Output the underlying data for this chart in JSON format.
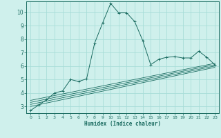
{
  "xlabel": "Humidex (Indice chaleur)",
  "bg_color": "#cff0ec",
  "line_color": "#1a6b60",
  "grid_color": "#a8ddd8",
  "xlim": [
    -0.5,
    23.5
  ],
  "ylim": [
    2.5,
    10.8
  ],
  "xticks": [
    0,
    1,
    2,
    3,
    4,
    5,
    6,
    7,
    8,
    9,
    10,
    11,
    12,
    13,
    14,
    15,
    16,
    17,
    18,
    19,
    20,
    21,
    22,
    23
  ],
  "yticks": [
    3,
    4,
    5,
    6,
    7,
    8,
    9,
    10
  ],
  "main_x": [
    0,
    1,
    2,
    3,
    4,
    5,
    6,
    7,
    8,
    9,
    10,
    11,
    12,
    13,
    14,
    15,
    16,
    17,
    18,
    19,
    20,
    21,
    22,
    23
  ],
  "main_y": [
    2.7,
    3.1,
    3.5,
    4.0,
    4.15,
    5.0,
    4.85,
    5.05,
    7.7,
    9.2,
    10.65,
    9.95,
    9.95,
    9.3,
    7.9,
    6.1,
    6.5,
    6.65,
    6.7,
    6.6,
    6.6,
    7.1,
    6.65,
    6.1
  ],
  "ref_lines": [
    [
      [
        0,
        23
      ],
      [
        3.0,
        5.9
      ]
    ],
    [
      [
        0,
        23
      ],
      [
        3.15,
        6.0
      ]
    ],
    [
      [
        0,
        23
      ],
      [
        3.3,
        6.1
      ]
    ],
    [
      [
        0,
        23
      ],
      [
        3.45,
        6.2
      ]
    ]
  ]
}
